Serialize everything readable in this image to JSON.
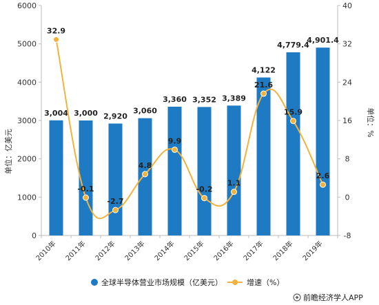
{
  "chart_data": {
    "type": "bar",
    "categories": [
      "2010年",
      "2011年",
      "2012年",
      "2013年",
      "2014年",
      "2015年",
      "2016年",
      "2017年",
      "2018年",
      "2019年"
    ],
    "series": [
      {
        "name": "全球半导体营业市场规模（亿美元）",
        "type": "bar",
        "axis": "left",
        "values": [
          3004,
          3000,
          2920,
          3060,
          3360,
          3352,
          3389,
          4122,
          4779.4,
          4901.4
        ],
        "labels": [
          "3,004",
          "3,000",
          "2,920",
          "3,060",
          "3,360",
          "3,352",
          "3,389",
          "4,122",
          "4,779.4",
          "4,901.4"
        ]
      },
      {
        "name": "增速（%）",
        "type": "line",
        "axis": "right",
        "values": [
          32.9,
          -0.1,
          -2.7,
          4.8,
          9.9,
          -0.2,
          1.1,
          21.6,
          15.9,
          2.6
        ],
        "labels": [
          "32.9",
          "-0.1",
          "-2.7",
          "4.8",
          "9.9",
          "-0.2",
          "1.1",
          "21.6",
          "15.9",
          "2.6"
        ]
      }
    ],
    "ylabel": "单位：亿美元",
    "y2label": "单位：%",
    "ylim": [
      0,
      6000
    ],
    "y2lim": [
      -8,
      40
    ],
    "yticks": [
      0,
      1000,
      2000,
      3000,
      4000,
      5000,
      6000
    ],
    "y2ticks": [
      -8,
      0,
      8,
      16,
      24,
      32,
      40
    ],
    "grid": false,
    "legend_position": "bottom"
  },
  "colors": {
    "bar": "#1f7ac4",
    "line": "#f2b33d",
    "axis": "#bbbbbb"
  },
  "source": "前瞻经济学人APP"
}
